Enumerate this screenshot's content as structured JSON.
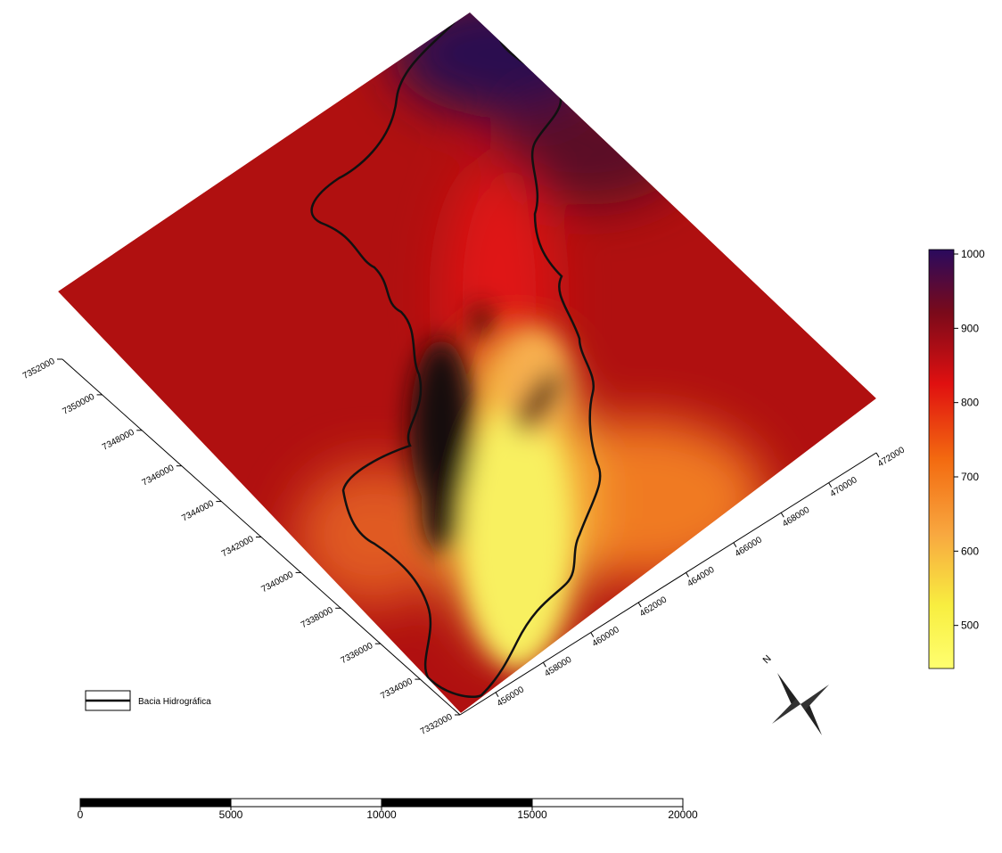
{
  "map": {
    "y_axis": {
      "ticks": [
        7352000,
        7350000,
        7348000,
        7346000,
        7344000,
        7342000,
        7340000,
        7338000,
        7336000,
        7334000,
        7332000
      ],
      "lim": [
        7332000,
        7352000
      ]
    },
    "x_axis": {
      "ticks": [
        456000,
        458000,
        460000,
        462000,
        464000,
        466000,
        468000,
        470000,
        472000
      ],
      "lim": [
        454500,
        472000
      ]
    },
    "colorbar": {
      "ticks": [
        1000,
        900,
        800,
        700,
        600,
        500
      ],
      "lim": [
        442,
        1006
      ]
    },
    "legend": {
      "label": "Bacia Hidrográfica"
    },
    "scale_bar": {
      "ticks": [
        0,
        5000,
        10000,
        15000,
        20000
      ]
    },
    "north": "N"
  }
}
